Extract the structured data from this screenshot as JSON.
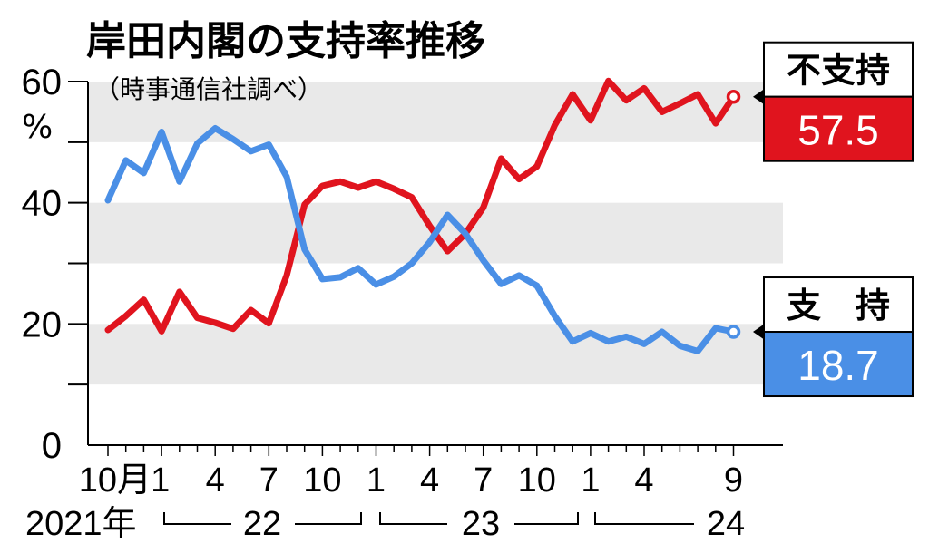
{
  "chart_data": {
    "type": "line",
    "title": "岸田内閣の支持率推移",
    "subtitle": "（時事通信社調べ）",
    "ylabel": "%",
    "ylim": [
      0,
      60
    ],
    "yticks": [
      "0",
      "20",
      "40",
      "60"
    ],
    "x_tick_labels": [
      "10月",
      "1",
      "4",
      "7",
      "10",
      "1",
      "4",
      "7",
      "10",
      "1",
      "4",
      "9"
    ],
    "year_labels": [
      "2021年",
      "22",
      "23",
      "24"
    ],
    "x": [
      "2021-10",
      "2021-11",
      "2021-12",
      "2022-01",
      "2022-02",
      "2022-03",
      "2022-04",
      "2022-05",
      "2022-06",
      "2022-07",
      "2022-08",
      "2022-09",
      "2022-10",
      "2022-11",
      "2022-12",
      "2023-01",
      "2023-02",
      "2023-03",
      "2023-04",
      "2023-05",
      "2023-06",
      "2023-07",
      "2023-08",
      "2023-09",
      "2023-10",
      "2023-11",
      "2023-12",
      "2024-01",
      "2024-02",
      "2024-03",
      "2024-04",
      "2024-05",
      "2024-06",
      "2024-07",
      "2024-08",
      "2024-09"
    ],
    "series": [
      {
        "name": "不支持",
        "color": "#e0141e",
        "values": [
          19.0,
          21.3,
          24.0,
          18.8,
          25.3,
          21.0,
          20.2,
          19.2,
          22.3,
          20.1,
          28.0,
          39.7,
          42.8,
          43.5,
          42.5,
          43.5,
          42.3,
          40.9,
          36.2,
          32.0,
          34.9,
          39.2,
          47.3,
          43.9,
          46.0,
          52.8,
          57.9,
          53.6,
          60.1,
          56.9,
          58.9,
          55.0,
          56.4,
          57.9,
          53.1,
          57.5
        ],
        "final_value": "57.5"
      },
      {
        "name": "支　持",
        "color": "#4a8fe6",
        "values": [
          40.4,
          47.0,
          44.9,
          51.7,
          43.5,
          49.8,
          52.3,
          50.5,
          48.5,
          49.6,
          44.3,
          32.3,
          27.4,
          27.7,
          29.2,
          26.5,
          27.8,
          30.0,
          33.5,
          38.0,
          34.9,
          30.5,
          26.6,
          28.0,
          26.3,
          21.3,
          17.1,
          18.5,
          17.1,
          17.9,
          16.7,
          18.7,
          16.4,
          15.5,
          19.3,
          18.7
        ],
        "final_value": "18.7"
      }
    ],
    "bands": [
      [
        10,
        20
      ],
      [
        30,
        40
      ],
      [
        50,
        60
      ]
    ],
    "band_color": "#e9e9e9"
  }
}
